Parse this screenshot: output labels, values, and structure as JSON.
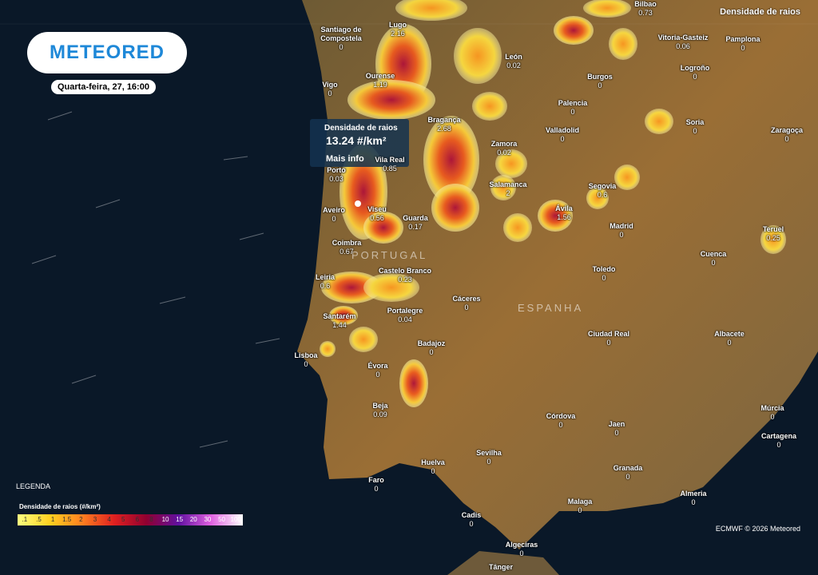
{
  "header": {
    "logo": "METEORED",
    "datetime": "Quarta-feira, 27, 16:00",
    "layer": "Densidade de raios"
  },
  "popup": {
    "title": "Densidade de raios",
    "value": "13.24 #/km²",
    "link": "Mais info"
  },
  "countries": [
    "PORTUGAL",
    "ESPANHA"
  ],
  "cities": [
    {
      "name": "Santiago de Compostela",
      "value": 0
    },
    {
      "name": "Lugo",
      "value": 2.16
    },
    {
      "name": "Bilbao",
      "value": 0.73
    },
    {
      "name": "Vitoria-Gasteiz",
      "value": 0.06
    },
    {
      "name": "Pamplona",
      "value": 0
    },
    {
      "name": "León",
      "value": 0.02
    },
    {
      "name": "Vigo",
      "value": 0
    },
    {
      "name": "Ourense",
      "value": 1.19
    },
    {
      "name": "Burgos",
      "value": 0
    },
    {
      "name": "Logroño",
      "value": 0
    },
    {
      "name": "Palencia",
      "value": 0
    },
    {
      "name": "Bragança",
      "value": 2.68
    },
    {
      "name": "Soria",
      "value": 0
    },
    {
      "name": "Valladolid",
      "value": 0
    },
    {
      "name": "Zamora",
      "value": 0.02
    },
    {
      "name": "Zaragoça",
      "value": 0
    },
    {
      "name": "Porto",
      "value": 0.03
    },
    {
      "name": "Vila Real",
      "value": 0.85
    },
    {
      "name": "Salamanca",
      "value": 2
    },
    {
      "name": "Segovia",
      "value": 0.6
    },
    {
      "name": "Aveiro",
      "value": 0
    },
    {
      "name": "Viseu",
      "value": 0.56
    },
    {
      "name": "Guarda",
      "value": 0.17
    },
    {
      "name": "Ávila",
      "value": 1.56
    },
    {
      "name": "Madrid",
      "value": 0
    },
    {
      "name": "Teruel",
      "value": 0.25
    },
    {
      "name": "Coimbra",
      "value": 0.67
    },
    {
      "name": "Cuenca",
      "value": 0
    },
    {
      "name": "Leiria",
      "value": 0.6
    },
    {
      "name": "Castelo Branco",
      "value": 0.23
    },
    {
      "name": "Toledo",
      "value": 0
    },
    {
      "name": "Cáceres",
      "value": 0
    },
    {
      "name": "Santarém",
      "value": 1.44
    },
    {
      "name": "Portalegre",
      "value": 0.04
    },
    {
      "name": "Ciudad Real",
      "value": 0
    },
    {
      "name": "Albacete",
      "value": 0
    },
    {
      "name": "Lisboa",
      "value": 0
    },
    {
      "name": "Badajoz",
      "value": 0
    },
    {
      "name": "Évora",
      "value": 0
    },
    {
      "name": "Beja",
      "value": 0.09
    },
    {
      "name": "Córdova",
      "value": 0
    },
    {
      "name": "Jaen",
      "value": 0
    },
    {
      "name": "Múrcia",
      "value": 0
    },
    {
      "name": "Cartagena",
      "value": 0
    },
    {
      "name": "Sevilha",
      "value": 0
    },
    {
      "name": "Huelva",
      "value": 0
    },
    {
      "name": "Granada",
      "value": 0
    },
    {
      "name": "Faro",
      "value": 0
    },
    {
      "name": "Almeria",
      "value": 0
    },
    {
      "name": "Malaga",
      "value": 0
    },
    {
      "name": "Cadis",
      "value": 0
    },
    {
      "name": "Algeciras",
      "value": 0
    },
    {
      "name": "Tânger"
    }
  ],
  "legend": {
    "title": "LEGENDA",
    "subtitle": "Densidade de raios (#/km²)",
    "scale": [
      ".1",
      ".5",
      "1",
      "1.5",
      "2",
      "3",
      "4",
      "5",
      "6",
      "8",
      "10",
      "15",
      "20",
      "30",
      "50",
      "100"
    ]
  },
  "credit": "ECMWF © 2026 Meteored"
}
